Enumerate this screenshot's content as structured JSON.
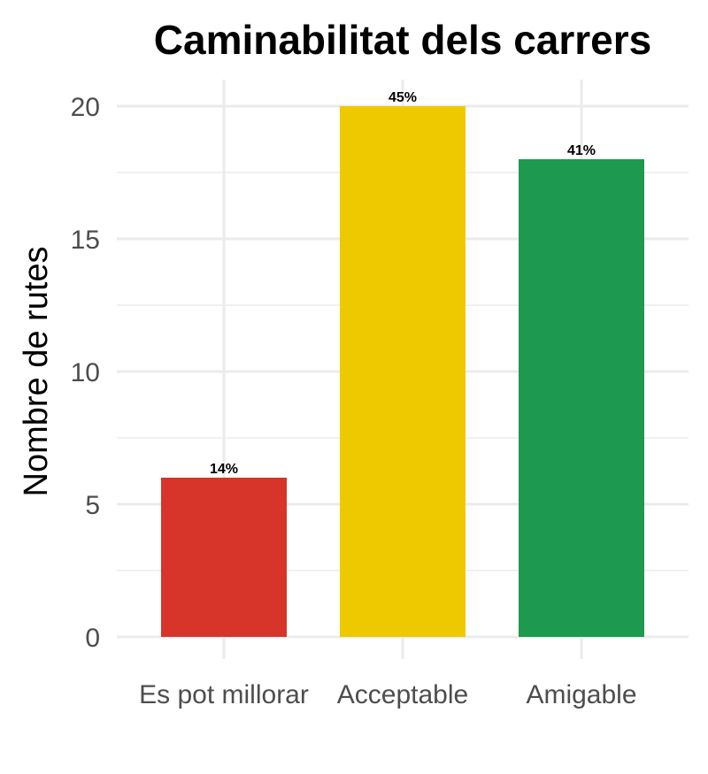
{
  "chart_data": {
    "type": "bar",
    "title": "Caminabilitat dels carrers",
    "xlabel": "",
    "ylabel": "Nombre de rutes",
    "categories": [
      "Es pot millorar",
      "Acceptable",
      "Amigable"
    ],
    "values": [
      6,
      20,
      18
    ],
    "data_labels": [
      "14%",
      "45%",
      "41%"
    ],
    "colors": [
      "#d7342a",
      "#eec900",
      "#1e9950"
    ],
    "ylim": [
      0,
      20
    ],
    "yticks": [
      0,
      5,
      10,
      15,
      20
    ],
    "ytick_labels": [
      "0",
      "5",
      "10",
      "15",
      "20"
    ],
    "grid": true,
    "legend": "none"
  }
}
